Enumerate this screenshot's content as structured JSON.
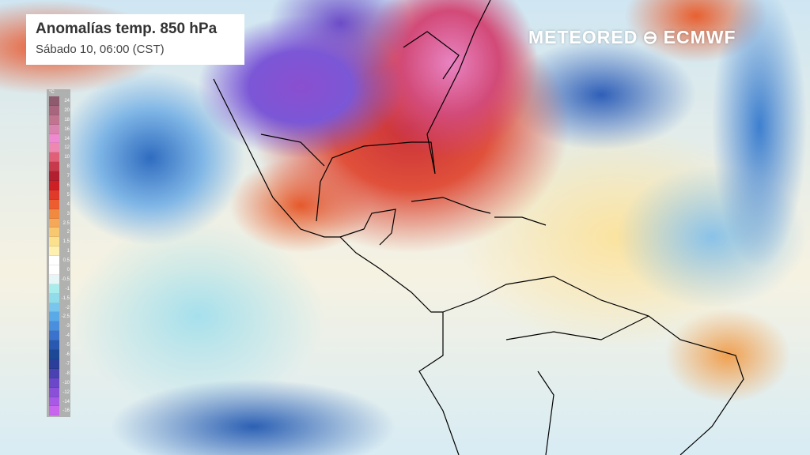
{
  "title": "Anomalías temp. 850 hPa",
  "subtitle": "Sábado 10, 06:00 (CST)",
  "brand": {
    "left": "METEORED",
    "right": "ECMWF",
    "icon": "ecmwf-logo-icon"
  },
  "legend": {
    "unit": "°C",
    "labels": [
      "24",
      "20",
      "18",
      "16",
      "14",
      "12",
      "10",
      "8",
      "7",
      "6",
      "5",
      "4",
      "3",
      "2.5",
      "2",
      "1.5",
      "1",
      "0.5",
      "0",
      "-0.5",
      "-1",
      "-1.5",
      "-2",
      "-2.5",
      "-3",
      "-4",
      "-5",
      "-6",
      "-7",
      "-8",
      "-10",
      "-12",
      "-14",
      "-16"
    ],
    "colors": [
      "#8e5a6e",
      "#a8667e",
      "#c07490",
      "#d884ae",
      "#f08ad0",
      "#ee88b0",
      "#e06078",
      "#c63a4c",
      "#b22030",
      "#cc2025",
      "#e03a2a",
      "#ec5e30",
      "#f08a40",
      "#f5a858",
      "#f8c870",
      "#fbe08e",
      "#fdf0b0",
      "#ffffff",
      "#ffffff",
      "#e6f6f6",
      "#a8ecec",
      "#90dcea",
      "#78c6ee",
      "#5aaae8",
      "#4a8ede",
      "#3a72cc",
      "#2858b0",
      "#1c4896",
      "#2a3e9a",
      "#4a42b0",
      "#6a48c8",
      "#8a50d8",
      "#a85ae6",
      "#c866ee"
    ]
  }
}
